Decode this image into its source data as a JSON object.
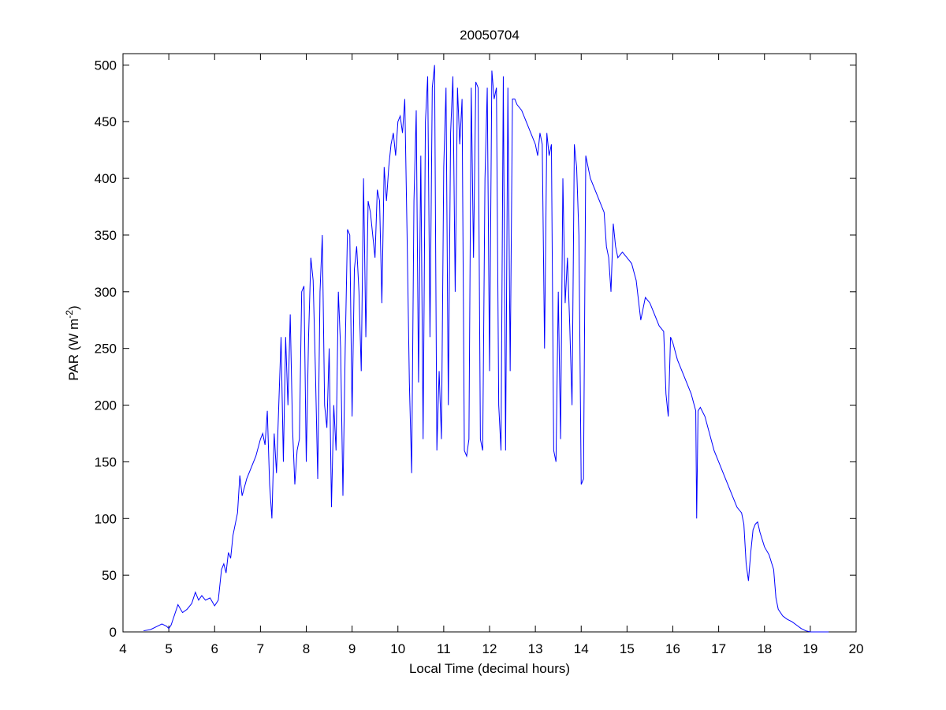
{
  "chart_data": {
    "type": "line",
    "title": "20050704",
    "xlabel": "Local Time (decimal hours)",
    "ylabel": [
      "PAR (W m",
      "-2",
      ")"
    ],
    "xlim": [
      4,
      20
    ],
    "xticks": [
      4,
      5,
      6,
      7,
      8,
      9,
      10,
      11,
      12,
      13,
      14,
      15,
      16,
      17,
      18,
      19,
      20
    ],
    "ylim": [
      0,
      510
    ],
    "yticks": [
      0,
      50,
      100,
      150,
      200,
      250,
      300,
      350,
      400,
      450,
      500
    ],
    "grid": false,
    "series": [
      {
        "color": "#0000ff",
        "x": [
          4.45,
          4.6,
          4.75,
          4.85,
          4.95,
          5.0,
          5.05,
          5.1,
          5.2,
          5.3,
          5.4,
          5.5,
          5.58,
          5.65,
          5.72,
          5.8,
          5.9,
          6.0,
          6.08,
          6.15,
          6.2,
          6.25,
          6.3,
          6.35,
          6.4,
          6.45,
          6.5,
          6.55,
          6.6,
          6.7,
          6.8,
          6.9,
          7.0,
          7.05,
          7.1,
          7.15,
          7.2,
          7.25,
          7.3,
          7.35,
          7.4,
          7.45,
          7.5,
          7.55,
          7.6,
          7.65,
          7.7,
          7.75,
          7.8,
          7.85,
          7.9,
          7.95,
          8.0,
          8.05,
          8.1,
          8.15,
          8.2,
          8.25,
          8.3,
          8.35,
          8.4,
          8.45,
          8.5,
          8.55,
          8.6,
          8.65,
          8.7,
          8.75,
          8.8,
          8.85,
          8.9,
          8.95,
          9.0,
          9.05,
          9.1,
          9.15,
          9.2,
          9.25,
          9.3,
          9.35,
          9.4,
          9.45,
          9.5,
          9.55,
          9.6,
          9.65,
          9.7,
          9.75,
          9.8,
          9.85,
          9.9,
          9.95,
          10.0,
          10.05,
          10.1,
          10.15,
          10.2,
          10.25,
          10.3,
          10.35,
          10.4,
          10.45,
          10.5,
          10.55,
          10.6,
          10.65,
          10.7,
          10.75,
          10.8,
          10.85,
          10.9,
          10.95,
          11.0,
          11.05,
          11.1,
          11.15,
          11.2,
          11.25,
          11.3,
          11.35,
          11.4,
          11.45,
          11.5,
          11.55,
          11.6,
          11.65,
          11.7,
          11.75,
          11.8,
          11.85,
          11.9,
          11.95,
          12.0,
          12.05,
          12.1,
          12.15,
          12.2,
          12.25,
          12.3,
          12.35,
          12.4,
          12.45,
          12.5,
          12.55,
          12.6,
          12.7,
          12.8,
          12.9,
          13.0,
          13.05,
          13.1,
          13.15,
          13.2,
          13.25,
          13.3,
          13.35,
          13.4,
          13.45,
          13.5,
          13.55,
          13.6,
          13.65,
          13.7,
          13.75,
          13.8,
          13.85,
          13.9,
          13.95,
          14.0,
          14.05,
          14.1,
          14.15,
          14.2,
          14.3,
          14.4,
          14.5,
          14.55,
          14.6,
          14.65,
          14.7,
          14.75,
          14.8,
          14.9,
          15.0,
          15.1,
          15.2,
          15.3,
          15.4,
          15.5,
          15.6,
          15.7,
          15.8,
          15.85,
          15.9,
          15.95,
          16.0,
          16.1,
          16.2,
          16.3,
          16.4,
          16.5,
          16.52,
          16.55,
          16.6,
          16.7,
          16.8,
          16.9,
          17.0,
          17.1,
          17.2,
          17.3,
          17.4,
          17.5,
          17.55,
          17.6,
          17.65,
          17.7,
          17.75,
          17.8,
          17.85,
          17.9,
          18.0,
          18.1,
          18.2,
          18.25,
          18.3,
          18.4,
          18.5,
          18.6,
          18.7,
          18.8,
          18.9,
          19.0,
          19.4
        ],
        "values": [
          1,
          2,
          5,
          7,
          5,
          3,
          6,
          12,
          24,
          17,
          20,
          25,
          35,
          28,
          32,
          28,
          30,
          23,
          28,
          55,
          60,
          52,
          70,
          65,
          85,
          95,
          105,
          138,
          120,
          135,
          145,
          155,
          170,
          175,
          165,
          195,
          130,
          100,
          175,
          140,
          200,
          260,
          150,
          260,
          200,
          280,
          180,
          130,
          160,
          170,
          300,
          305,
          150,
          260,
          330,
          310,
          230,
          135,
          300,
          350,
          200,
          180,
          250,
          110,
          200,
          160,
          300,
          250,
          120,
          250,
          355,
          350,
          190,
          320,
          340,
          300,
          230,
          400,
          260,
          380,
          370,
          350,
          330,
          390,
          380,
          290,
          410,
          380,
          410,
          430,
          440,
          420,
          450,
          455,
          440,
          470,
          350,
          220,
          140,
          380,
          460,
          220,
          420,
          170,
          450,
          490,
          260,
          480,
          500,
          160,
          230,
          170,
          410,
          480,
          200,
          440,
          490,
          300,
          480,
          430,
          470,
          160,
          155,
          170,
          480,
          330,
          485,
          480,
          170,
          160,
          400,
          480,
          230,
          495,
          470,
          480,
          200,
          160,
          490,
          160,
          480,
          230,
          470,
          470,
          465,
          460,
          450,
          440,
          430,
          420,
          440,
          430,
          250,
          440,
          420,
          430,
          160,
          150,
          300,
          170,
          400,
          290,
          330,
          270,
          200,
          430,
          410,
          350,
          130,
          135,
          420,
          410,
          400,
          390,
          380,
          370,
          340,
          330,
          300,
          360,
          340,
          330,
          335,
          330,
          325,
          310,
          275,
          295,
          290,
          280,
          270,
          265,
          210,
          190,
          260,
          255,
          240,
          230,
          220,
          210,
          195,
          100,
          195,
          198,
          190,
          175,
          160,
          150,
          140,
          130,
          120,
          110,
          105,
          95,
          60,
          45,
          70,
          90,
          95,
          97,
          88,
          75,
          68,
          55,
          30,
          20,
          14,
          11,
          9,
          6,
          3,
          1,
          0,
          0
        ]
      }
    ]
  }
}
